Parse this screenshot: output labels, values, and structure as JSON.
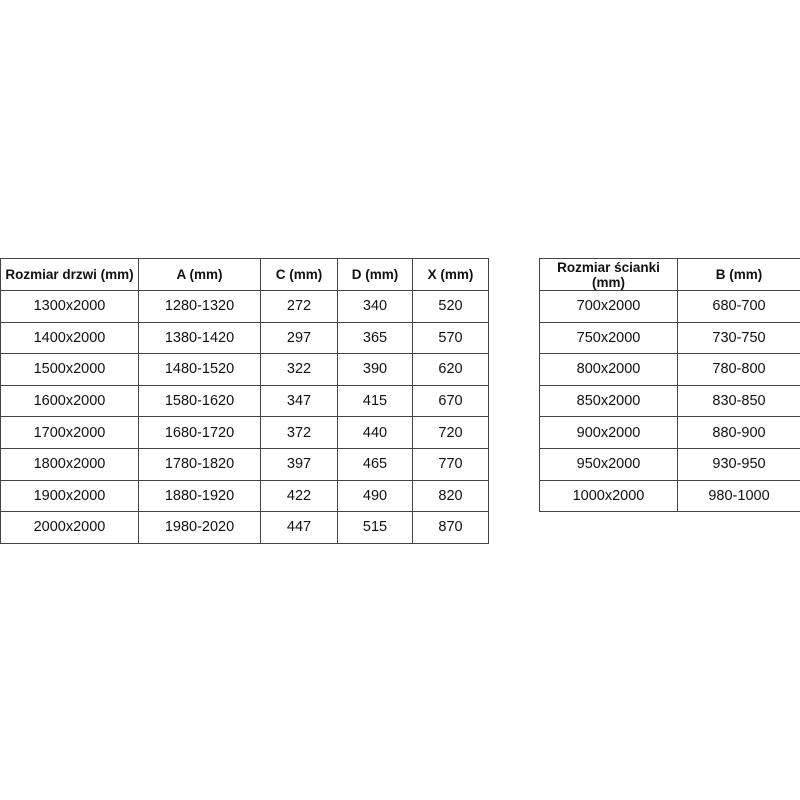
{
  "doors_table": {
    "headers": [
      "Rozmiar drzwi (mm)",
      "A (mm)",
      "C (mm)",
      "D (mm)",
      "X (mm)"
    ],
    "rows": [
      [
        "1300x2000",
        "1280-1320",
        "272",
        "340",
        "520"
      ],
      [
        "1400x2000",
        "1380-1420",
        "297",
        "365",
        "570"
      ],
      [
        "1500x2000",
        "1480-1520",
        "322",
        "390",
        "620"
      ],
      [
        "1600x2000",
        "1580-1620",
        "347",
        "415",
        "670"
      ],
      [
        "1700x2000",
        "1680-1720",
        "372",
        "440",
        "720"
      ],
      [
        "1800x2000",
        "1780-1820",
        "397",
        "465",
        "770"
      ],
      [
        "1900x2000",
        "1880-1920",
        "422",
        "490",
        "820"
      ],
      [
        "2000x2000",
        "1980-2020",
        "447",
        "515",
        "870"
      ]
    ]
  },
  "wall_table": {
    "headers": [
      "Rozmiar ścianki (mm)",
      "B (mm)"
    ],
    "rows": [
      [
        "700x2000",
        "680-700"
      ],
      [
        "750x2000",
        "730-750"
      ],
      [
        "800x2000",
        "780-800"
      ],
      [
        "850x2000",
        "830-850"
      ],
      [
        "900x2000",
        "880-900"
      ],
      [
        "950x2000",
        "930-950"
      ],
      [
        "1000x2000",
        "980-1000"
      ]
    ]
  }
}
